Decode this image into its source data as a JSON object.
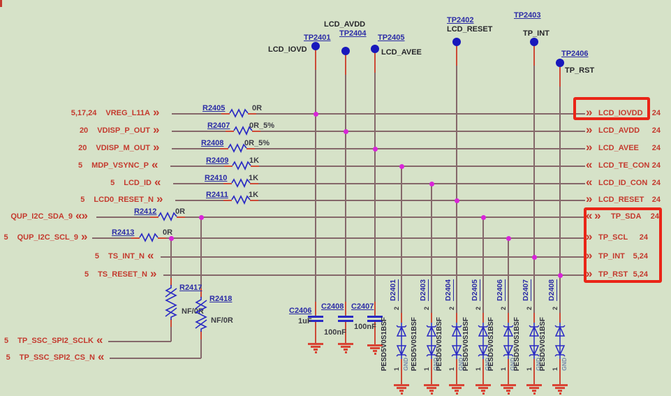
{
  "colors": {
    "bg": "#d6e2c8",
    "wire": "#85686a",
    "lead": "#cd4936",
    "red": "#c43a2e",
    "blue": "#2a2ac4",
    "refc": "#2b2ba6",
    "valc": "#3c3c44",
    "blkc": "#26262a",
    "partc": "#2f2f3e",
    "gndtxt": "#7589ad",
    "dotc": "#d924d9",
    "tpc": "#1818bc",
    "gndc": "#d94434",
    "hl": "#ea2517"
  },
  "testpoints": [
    {
      "ref": "TP2401",
      "net": "LCD_IOVD"
    },
    {
      "ref": "TP2404",
      "net": "LCD_AVDD"
    },
    {
      "ref": "TP2405",
      "net": "LCD_AVEE"
    },
    {
      "ref": "TP2402",
      "net": "LCD_RESET"
    },
    {
      "ref": "TP2403",
      "net": "TP_INT"
    },
    {
      "ref": "TP2406",
      "net": "TP_RST"
    }
  ],
  "left_rows": [
    {
      "pages": "5,17,24",
      "net": "VREG_L11A",
      "arrow": "»"
    },
    {
      "pages": "20",
      "net": "VDISP_P_OUT",
      "arrow": "»"
    },
    {
      "pages": "20",
      "net": "VDISP_M_OUT",
      "arrow": "»"
    },
    {
      "pages": "5",
      "net": "MDP_VSYNC_P",
      "arrow": "«"
    },
    {
      "pages": "5",
      "net": "LCD_ID",
      "arrow": "«"
    },
    {
      "pages": "5",
      "net": "LCD0_RESET_N",
      "arrow": "»"
    },
    {
      "pages": "",
      "net": "QUP_I2C_SDA_9",
      "arrow": "«»"
    },
    {
      "pages": "5",
      "net": "QUP_I2C_SCL_9",
      "arrow": "»"
    },
    {
      "pages": "5",
      "net": "TS_INT_N",
      "arrow": "«"
    },
    {
      "pages": "5",
      "net": "TS_RESET_N",
      "arrow": "»"
    },
    {
      "pages": "5",
      "net": "TP_SSC_SPI2_SCLK",
      "arrow": "«"
    },
    {
      "pages": "5",
      "net": "TP_SSC_SPI2_CS_N",
      "arrow": "«"
    }
  ],
  "right_rows": [
    {
      "net": "LCD_IOVDD",
      "pages": "24",
      "arrow": "»"
    },
    {
      "net": "LCD_AVDD",
      "pages": "24",
      "arrow": "»"
    },
    {
      "net": "LCD_AVEE",
      "pages": "24",
      "arrow": "»"
    },
    {
      "net": "LCD_TE_CON",
      "pages": "24",
      "arrow": "«"
    },
    {
      "net": "LCD_ID_CON",
      "pages": "24",
      "arrow": "«"
    },
    {
      "net": "LCD_RESET",
      "pages": "24",
      "arrow": "»"
    },
    {
      "net": "TP_SDA",
      "pages": "24",
      "arrow": "« »"
    },
    {
      "net": "TP_SCL",
      "pages": "24",
      "arrow": "»"
    },
    {
      "net": "TP_INT",
      "pages": "5,24",
      "arrow": "»"
    },
    {
      "net": "TP_RST",
      "pages": "5,24",
      "arrow": "»"
    }
  ],
  "resistors": [
    {
      "ref": "R2405",
      "value": "0R"
    },
    {
      "ref": "R2407",
      "value": "0R_5%"
    },
    {
      "ref": "R2408",
      "value": "0R_5%"
    },
    {
      "ref": "R2409",
      "value": "1K"
    },
    {
      "ref": "R2410",
      "value": "1K"
    },
    {
      "ref": "R2411",
      "value": "1K"
    },
    {
      "ref": "R2412",
      "value": "0R"
    },
    {
      "ref": "R2413",
      "value": "0R"
    }
  ],
  "shunt_resistors": [
    {
      "ref": "R2417",
      "value": "NF/0R"
    },
    {
      "ref": "R2418",
      "value": "NF/0R"
    }
  ],
  "capacitors": [
    {
      "ref": "C2406",
      "value": "1uF"
    },
    {
      "ref": "C2408",
      "value": "100nF"
    },
    {
      "ref": "C2407",
      "value": "100nF"
    }
  ],
  "diodes": {
    "part": "PESD5V0S1BSF",
    "pin_top": "2",
    "pin_bottom": "1",
    "gnd_net": "GND",
    "refs": [
      "D2401",
      "D2403",
      "D2404",
      "D2405",
      "D2406",
      "D2407",
      "D2408"
    ]
  }
}
